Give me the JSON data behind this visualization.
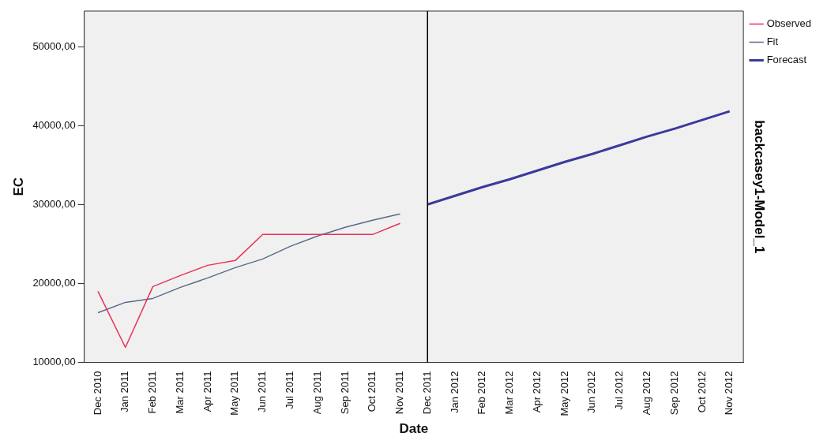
{
  "chart_data": {
    "type": "line",
    "xlabel": "Date",
    "ylabel": "EC",
    "categories": [
      "Dec 2010",
      "Jan 2011",
      "Feb 2011",
      "Mar 2011",
      "Apr 2011",
      "May 2011",
      "Jun 2011",
      "Jul 2011",
      "Aug 2011",
      "Sep 2011",
      "Oct 2011",
      "Nov 2011",
      "Dec 2011",
      "Jan 2012",
      "Feb 2012",
      "Mar 2012",
      "Apr 2012",
      "May 2012",
      "Jun 2012",
      "Jul 2012",
      "Aug 2012",
      "Sep 2012",
      "Oct 2012",
      "Nov 2012"
    ],
    "series": [
      {
        "name": "Observed",
        "color": "#e8305a",
        "values": [
          19000,
          11900,
          19600,
          21000,
          22300,
          22900,
          26200,
          26200,
          26200,
          26200,
          26200,
          27600,
          null,
          null,
          null,
          null,
          null,
          null,
          null,
          null,
          null,
          null,
          null,
          null
        ]
      },
      {
        "name": "Fit",
        "color": "#5a6a8a",
        "values": [
          16300,
          17600,
          18100,
          19500,
          20700,
          22000,
          23100,
          24700,
          26000,
          27100,
          28000,
          28800,
          null,
          null,
          null,
          null,
          null,
          null,
          null,
          null,
          null,
          null,
          null,
          null
        ]
      },
      {
        "name": "Forecast",
        "color": "#3a3a9c",
        "values": [
          null,
          null,
          null,
          null,
          null,
          null,
          null,
          null,
          null,
          null,
          null,
          null,
          30000,
          31100,
          32200,
          33200,
          34300,
          35400,
          36400,
          37500,
          38600,
          39600,
          40700,
          41800
        ]
      }
    ],
    "ylim": [
      10000,
      54500
    ],
    "yticks": [
      {
        "value": 10000,
        "label": "10000,00"
      },
      {
        "value": 20000,
        "label": "20000,00"
      },
      {
        "value": 30000,
        "label": "30000,00"
      },
      {
        "value": 40000,
        "label": "40000,00"
      },
      {
        "value": 50000,
        "label": "50000,00"
      }
    ],
    "ref_lines": [
      {
        "axis": "x",
        "value": "Dec 2011",
        "color": "#000000"
      }
    ],
    "annotations": [
      "backcasey1-Model_1"
    ],
    "grid": false,
    "legend": "top right",
    "marker": "none",
    "line_style": "solid"
  }
}
